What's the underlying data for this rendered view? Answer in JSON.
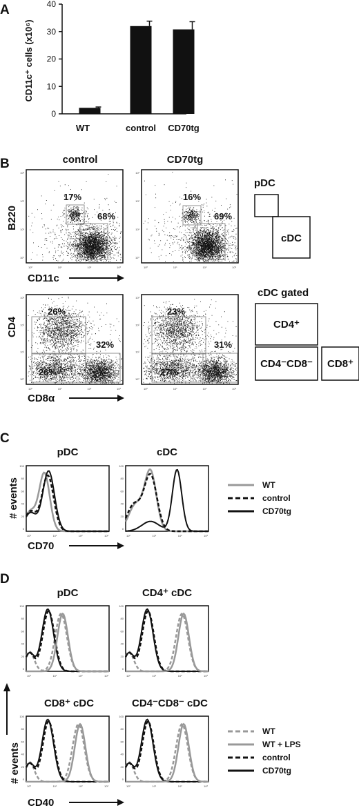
{
  "panels": {
    "a": "A",
    "b": "B",
    "c": "C",
    "d": "D"
  },
  "chart_data": [
    {
      "type": "bar",
      "ylabel": "CD11c⁺ cells (x10⁶)",
      "categories": [
        "WT",
        "control",
        "CD70tg"
      ],
      "values": [
        2.2,
        32,
        30.8
      ],
      "errors": [
        0.3,
        1.8,
        2.8
      ],
      "ylim": [
        0,
        40
      ],
      "yticks": [
        "0",
        "10",
        "20",
        "30",
        "40"
      ]
    }
  ],
  "flow": {
    "col_control": "control",
    "col_cd70tg": "CD70tg",
    "b220_axis": "B220",
    "cd11c_axis": "CD11c",
    "cd4_axis": "CD4",
    "cd8_axis": "CD8α",
    "tick_lbls": [
      "10⁰",
      "10¹",
      "10²",
      "10³"
    ],
    "ctrl_pdc": "17%",
    "ctrl_cdc": "68%",
    "tg_pdc": "16%",
    "tg_cdc": "69%",
    "ctrl_cd4": "26%",
    "ctrl_cd8": "32%",
    "ctrl_dn": "26%",
    "tg_cd4": "23%",
    "tg_cd8": "31%",
    "tg_dn": "27%",
    "scheme_pdc": "pDC",
    "scheme_cdc": "cDC",
    "scheme_gated": "cDC gated",
    "scheme_cd4": "CD4⁺",
    "scheme_dn": "CD4⁻CD8⁻",
    "scheme_cd8": "CD8⁺"
  },
  "histC": {
    "title_pdc": "pDC",
    "title_cdc": "cDC",
    "yaxis": "# events",
    "xaxis": "CD70",
    "yticks": [
      "100",
      "80",
      "60",
      "40",
      "20",
      "0"
    ],
    "legend": [
      "WT",
      "control",
      "CD70tg"
    ]
  },
  "histD": {
    "title_pdc": "pDC",
    "title_cd4": "CD4⁺ cDC",
    "title_cd8": "CD8⁺ cDC",
    "title_dn": "CD4⁻CD8⁻ cDC",
    "yaxis": "# events",
    "xaxis": "CD40",
    "legend": [
      "WT",
      "WT + LPS",
      "control",
      "CD70tg"
    ]
  },
  "colors": {
    "black": "#111111",
    "gray": "#999999",
    "darkgray": "#777777"
  }
}
